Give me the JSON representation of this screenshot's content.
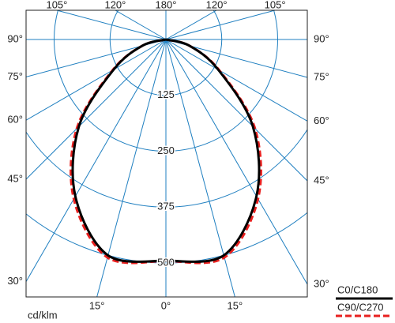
{
  "chart_data": {
    "type": "polar",
    "unit": "cd/klm",
    "angles": [
      0,
      15,
      30,
      45,
      60,
      75,
      90
    ],
    "rlim": [
      0,
      500
    ],
    "rticks": [
      125,
      250,
      375,
      500
    ],
    "angle_ticks": [
      {
        "value": 0,
        "label": "0°"
      },
      {
        "value": 15,
        "label": "15°"
      },
      {
        "value": 30,
        "label": "30°"
      },
      {
        "value": 45,
        "label": "45°"
      },
      {
        "value": 60,
        "label": "60°"
      },
      {
        "value": 75,
        "label": "75°"
      },
      {
        "value": 90,
        "label": "90°"
      },
      {
        "value": 105,
        "label": "105°"
      },
      {
        "value": 120,
        "label": "120°"
      },
      {
        "value": 180,
        "label": "180°"
      }
    ],
    "grid": true,
    "grid_color": "#1f7fc0",
    "legend": "bottom-right",
    "series": [
      {
        "name": "C0/C180",
        "color": "#000000",
        "dashed": false,
        "values": [
          495,
          500,
          405,
          275,
          135,
          55,
          0
        ]
      },
      {
        "name": "C90/C270",
        "color": "#e8201f",
        "dashed": true,
        "values": [
          495,
          505,
          412,
          282,
          138,
          55,
          0
        ]
      }
    ]
  }
}
